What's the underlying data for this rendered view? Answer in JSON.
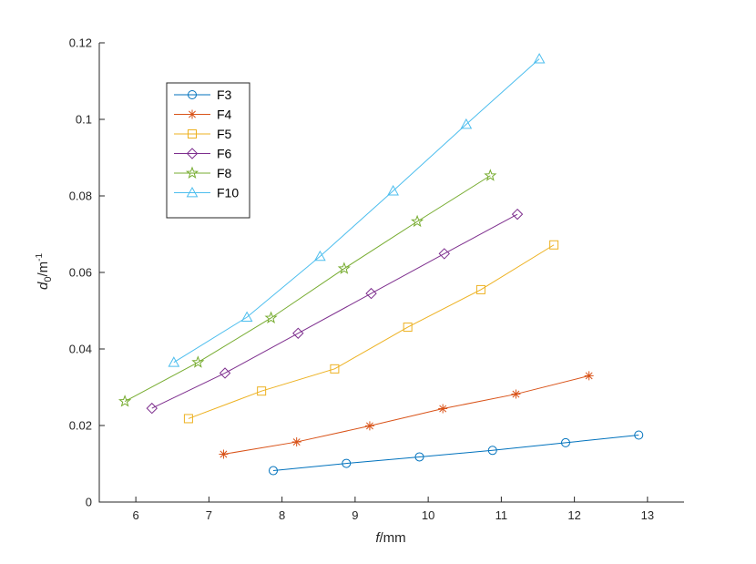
{
  "chart_data": {
    "type": "line",
    "xlabel": {
      "italic": "f",
      "rest": "/mm"
    },
    "ylabel": {
      "italic": "d",
      "sub": "0",
      "rest": "/m",
      "sup": "-1"
    },
    "xlim": [
      5.5,
      13.5
    ],
    "ylim": [
      0,
      0.12
    ],
    "xticks": [
      "6",
      "7",
      "8",
      "9",
      "10",
      "11",
      "12",
      "13"
    ],
    "yticks": [
      "0",
      "0.02",
      "0.04",
      "0.06",
      "0.08",
      "0.1",
      "0.12"
    ],
    "xtick_values": [
      6,
      7,
      8,
      9,
      10,
      11,
      12,
      13
    ],
    "ytick_values": [
      0,
      0.02,
      0.04,
      0.06,
      0.08,
      0.1,
      0.12
    ],
    "grid": false,
    "legend_position": "top-left",
    "series": [
      {
        "name": "F3",
        "marker": "circle",
        "color": "#0072BD",
        "x": [
          7.88,
          8.88,
          9.88,
          10.88,
          11.88,
          12.88
        ],
        "y": [
          0.0082,
          0.0101,
          0.0118,
          0.0135,
          0.0155,
          0.0175
        ]
      },
      {
        "name": "F4",
        "marker": "asterisk",
        "color": "#D95319",
        "x": [
          7.2,
          8.2,
          9.2,
          10.2,
          11.2,
          12.2
        ],
        "y": [
          0.0125,
          0.0157,
          0.0199,
          0.0244,
          0.0282,
          0.033
        ]
      },
      {
        "name": "F5",
        "marker": "square",
        "color": "#EDB120",
        "x": [
          6.72,
          7.72,
          8.72,
          9.72,
          10.72,
          11.72
        ],
        "y": [
          0.0218,
          0.029,
          0.0348,
          0.0457,
          0.0555,
          0.0672
        ]
      },
      {
        "name": "F6",
        "marker": "diamond",
        "color": "#7E2F8E",
        "x": [
          6.22,
          7.22,
          8.22,
          9.22,
          10.22,
          11.22
        ],
        "y": [
          0.0245,
          0.0337,
          0.0441,
          0.0545,
          0.0649,
          0.0752
        ]
      },
      {
        "name": "F8",
        "marker": "pentagram",
        "color": "#77AC30",
        "x": [
          5.85,
          6.85,
          7.85,
          8.85,
          9.85,
          10.85
        ],
        "y": [
          0.0263,
          0.0365,
          0.0481,
          0.061,
          0.0733,
          0.0853
        ]
      },
      {
        "name": "F10",
        "marker": "triangle",
        "color": "#4DBEEE",
        "x": [
          6.52,
          7.52,
          8.52,
          9.52,
          10.52,
          11.52
        ],
        "y": [
          0.0365,
          0.0483,
          0.0642,
          0.0813,
          0.0987,
          0.1158
        ]
      }
    ]
  }
}
